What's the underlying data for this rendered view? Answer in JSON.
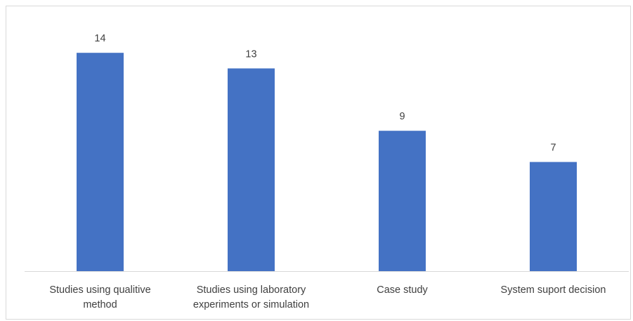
{
  "chart_data": {
    "type": "bar",
    "categories": [
      [
        "Studies using qualitive",
        "method"
      ],
      [
        "Studies using laboratory",
        "experiments or simulation"
      ],
      [
        "Case study"
      ],
      [
        "System suport decision"
      ]
    ],
    "values": [
      14,
      13,
      9,
      7
    ],
    "data_labels": [
      "14",
      "13",
      "9",
      "7"
    ],
    "title": "",
    "xlabel": "",
    "ylabel": "",
    "ylim": [
      0,
      15
    ],
    "grid": false,
    "legend": "none",
    "bar_color": "#4472C4",
    "axis_color": "#d9d9d9",
    "text_color": "#404040"
  }
}
